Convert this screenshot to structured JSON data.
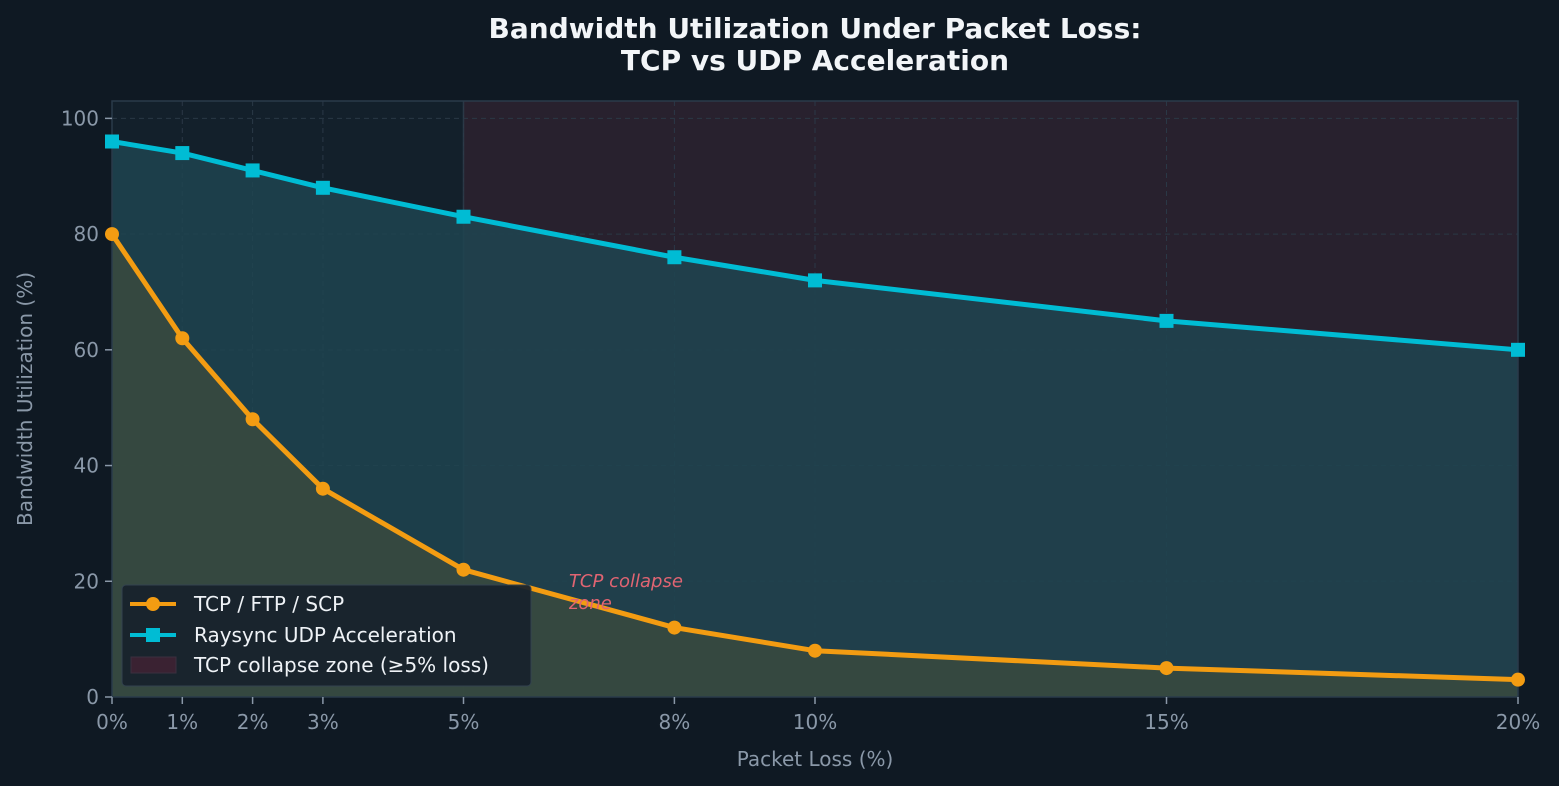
{
  "chart_data": {
    "type": "line",
    "title_lines": [
      "Bandwidth Utilization Under Packet Loss:",
      "TCP vs UDP Acceleration"
    ],
    "xlabel": "Packet Loss (%)",
    "ylabel": "Bandwidth Utilization (%)",
    "x": [
      0,
      1,
      2,
      3,
      5,
      8,
      10,
      15,
      20
    ],
    "x_tick_labels": [
      "0%",
      "1%",
      "2%",
      "3%",
      "5%",
      "8%",
      "10%",
      "15%",
      "20%"
    ],
    "xlim": [
      0,
      20
    ],
    "ylim": [
      0,
      103
    ],
    "y_ticks": [
      0,
      20,
      40,
      60,
      80,
      100
    ],
    "grid": true,
    "legend_position": "lower-left",
    "series": [
      {
        "name": "TCP / FTP / SCP",
        "color": "#f39c12",
        "marker": "circle",
        "fill": "#3a4a3e",
        "values": [
          80,
          62,
          48,
          36,
          22,
          12,
          8,
          5,
          3
        ]
      },
      {
        "name": "Raysync UDP Acceleration",
        "color": "#00bcd4",
        "marker": "square",
        "fill": "#1f4450",
        "values": [
          96,
          94,
          91,
          88,
          83,
          76,
          72,
          65,
          60
        ]
      }
    ],
    "zones": [
      {
        "name": "TCP collapse zone (≥5% loss)",
        "x_start": 5,
        "x_end": 20,
        "color": "#3a2232"
      }
    ],
    "annotations": [
      {
        "text_lines": [
          "TCP collapse",
          "zone"
        ],
        "x": 6.5,
        "y": 19
      }
    ]
  }
}
